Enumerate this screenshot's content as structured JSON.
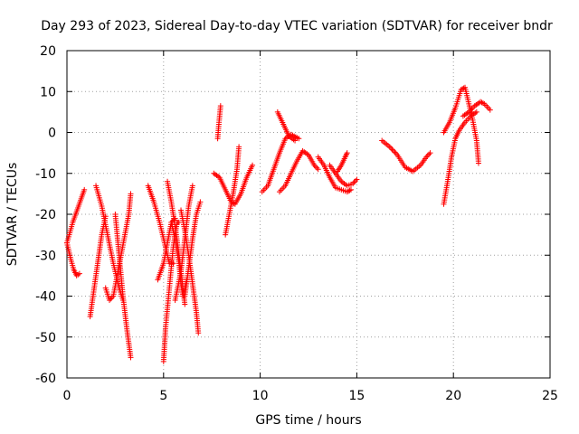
{
  "chart_data": {
    "type": "scatter",
    "title": "Day 293 of 2023, Sidereal Day-to-day VTEC variation (SDTVAR) for receiver bndr",
    "xlabel": "GPS time / hours",
    "ylabel": "SDTVAR / TECUs",
    "xlim": [
      0,
      25
    ],
    "ylim": [
      -60,
      20
    ],
    "xticks": [
      0,
      5,
      10,
      15,
      20,
      25
    ],
    "yticks": [
      -60,
      -50,
      -40,
      -30,
      -20,
      -10,
      0,
      10,
      20
    ],
    "grid": true,
    "marker": "+",
    "color": "#ff0000",
    "tracks": [
      [
        [
          0,
          -27
        ],
        [
          0.2,
          -31
        ],
        [
          0.35,
          -33.5
        ],
        [
          0.5,
          -35
        ],
        [
          0.65,
          -34.5
        ]
      ],
      [
        [
          0,
          -27
        ],
        [
          0.3,
          -22
        ],
        [
          0.6,
          -18
        ],
        [
          0.9,
          -14
        ]
      ],
      [
        [
          1.2,
          -45
        ],
        [
          1.5,
          -35
        ],
        [
          1.8,
          -25
        ],
        [
          2.0,
          -20.5
        ]
      ],
      [
        [
          1.5,
          -13
        ],
        [
          1.8,
          -18
        ],
        [
          2.1,
          -25
        ],
        [
          2.4,
          -32
        ],
        [
          2.7,
          -38
        ],
        [
          2.9,
          -41
        ]
      ],
      [
        [
          2.0,
          -38
        ],
        [
          2.2,
          -41
        ],
        [
          2.4,
          -40
        ],
        [
          2.6,
          -35
        ],
        [
          2.8,
          -30
        ],
        [
          3.0,
          -25
        ],
        [
          3.2,
          -20
        ],
        [
          3.3,
          -15
        ]
      ],
      [
        [
          2.5,
          -20
        ],
        [
          2.7,
          -30
        ],
        [
          2.9,
          -40
        ],
        [
          3.1,
          -48
        ],
        [
          3.3,
          -55
        ]
      ],
      [
        [
          4.2,
          -13
        ],
        [
          4.5,
          -17
        ],
        [
          4.8,
          -22
        ],
        [
          5.1,
          -28
        ],
        [
          5.3,
          -32
        ],
        [
          5.5,
          -32
        ]
      ],
      [
        [
          4.7,
          -36
        ],
        [
          5.0,
          -32
        ],
        [
          5.2,
          -27
        ],
        [
          5.4,
          -22
        ],
        [
          5.6,
          -21
        ]
      ],
      [
        [
          5.0,
          -56
        ],
        [
          5.1,
          -48
        ],
        [
          5.3,
          -38
        ],
        [
          5.5,
          -28
        ],
        [
          5.7,
          -22
        ],
        [
          5.8,
          -22
        ]
      ],
      [
        [
          5.2,
          -12
        ],
        [
          5.4,
          -17
        ],
        [
          5.6,
          -23
        ],
        [
          5.8,
          -30
        ],
        [
          6.0,
          -38
        ],
        [
          6.1,
          -42
        ]
      ],
      [
        [
          5.4,
          -22
        ],
        [
          5.6,
          -26
        ],
        [
          5.8,
          -32
        ],
        [
          5.9,
          -37
        ],
        [
          6.0,
          -40
        ],
        [
          6.2,
          -36
        ]
      ],
      [
        [
          5.6,
          -41
        ],
        [
          5.9,
          -34
        ],
        [
          6.1,
          -26
        ],
        [
          6.3,
          -18
        ],
        [
          6.5,
          -13
        ]
      ],
      [
        [
          5.9,
          -19
        ],
        [
          6.1,
          -24
        ],
        [
          6.3,
          -30
        ],
        [
          6.5,
          -37
        ],
        [
          6.7,
          -44
        ],
        [
          6.8,
          -49
        ]
      ],
      [
        [
          6.1,
          -40
        ],
        [
          6.3,
          -33
        ],
        [
          6.5,
          -26
        ],
        [
          6.7,
          -20
        ],
        [
          6.9,
          -17
        ]
      ],
      [
        [
          7.8,
          -1.5
        ],
        [
          7.85,
          1.5
        ],
        [
          7.9,
          4
        ],
        [
          7.95,
          6.5
        ]
      ],
      [
        [
          7.6,
          -10
        ],
        [
          7.9,
          -11
        ],
        [
          8.2,
          -14
        ],
        [
          8.5,
          -17
        ],
        [
          8.7,
          -17.5
        ],
        [
          9.0,
          -15
        ],
        [
          9.3,
          -11
        ],
        [
          9.6,
          -8
        ]
      ],
      [
        [
          8.2,
          -25
        ],
        [
          8.4,
          -20
        ],
        [
          8.6,
          -15
        ],
        [
          8.8,
          -9
        ],
        [
          8.9,
          -3.5
        ]
      ],
      [
        [
          10.1,
          -14.5
        ],
        [
          10.4,
          -13
        ],
        [
          10.7,
          -9
        ],
        [
          11.0,
          -5
        ],
        [
          11.3,
          -1.5
        ],
        [
          11.6,
          -0.5
        ],
        [
          12.0,
          -1.5
        ]
      ],
      [
        [
          10.9,
          5
        ],
        [
          11.2,
          2
        ],
        [
          11.5,
          -1
        ],
        [
          11.8,
          -2
        ]
      ],
      [
        [
          11.0,
          -14.5
        ],
        [
          11.3,
          -13
        ],
        [
          11.6,
          -10
        ],
        [
          11.9,
          -7
        ],
        [
          12.2,
          -4.5
        ],
        [
          12.5,
          -5.5
        ],
        [
          12.8,
          -8
        ],
        [
          13.0,
          -9
        ]
      ],
      [
        [
          13.0,
          -6
        ],
        [
          13.3,
          -8
        ],
        [
          13.6,
          -11
        ],
        [
          13.9,
          -13.5
        ],
        [
          14.2,
          -14
        ],
        [
          14.5,
          -14.5
        ],
        [
          14.7,
          -14
        ]
      ],
      [
        [
          13.6,
          -8
        ],
        [
          13.9,
          -10
        ],
        [
          14.2,
          -12
        ],
        [
          14.5,
          -13
        ],
        [
          14.8,
          -12.5
        ],
        [
          15.0,
          -11.5
        ]
      ],
      [
        [
          14.0,
          -9.5
        ],
        [
          14.2,
          -8
        ],
        [
          14.4,
          -6
        ],
        [
          14.5,
          -5
        ]
      ],
      [
        [
          16.3,
          -2
        ],
        [
          16.7,
          -3.5
        ],
        [
          17.1,
          -5.5
        ],
        [
          17.5,
          -8.5
        ],
        [
          17.9,
          -9.5
        ],
        [
          18.3,
          -8
        ],
        [
          18.6,
          -6
        ],
        [
          18.8,
          -5
        ]
      ],
      [
        [
          19.5,
          0
        ],
        [
          19.8,
          2.5
        ],
        [
          20.1,
          6
        ],
        [
          20.4,
          10.5
        ],
        [
          20.6,
          11
        ],
        [
          20.8,
          7
        ],
        [
          21.0,
          3
        ],
        [
          21.2,
          -2
        ],
        [
          21.3,
          -7.5
        ]
      ],
      [
        [
          19.5,
          -17.5
        ],
        [
          19.7,
          -12
        ],
        [
          19.9,
          -6
        ],
        [
          20.1,
          -1.5
        ],
        [
          20.3,
          0.5
        ],
        [
          20.6,
          2.5
        ],
        [
          20.9,
          4
        ],
        [
          21.2,
          5
        ]
      ],
      [
        [
          20.5,
          4
        ],
        [
          20.8,
          5
        ],
        [
          21.1,
          6.5
        ],
        [
          21.4,
          7.5
        ],
        [
          21.6,
          7
        ],
        [
          21.9,
          5.5
        ]
      ]
    ]
  }
}
